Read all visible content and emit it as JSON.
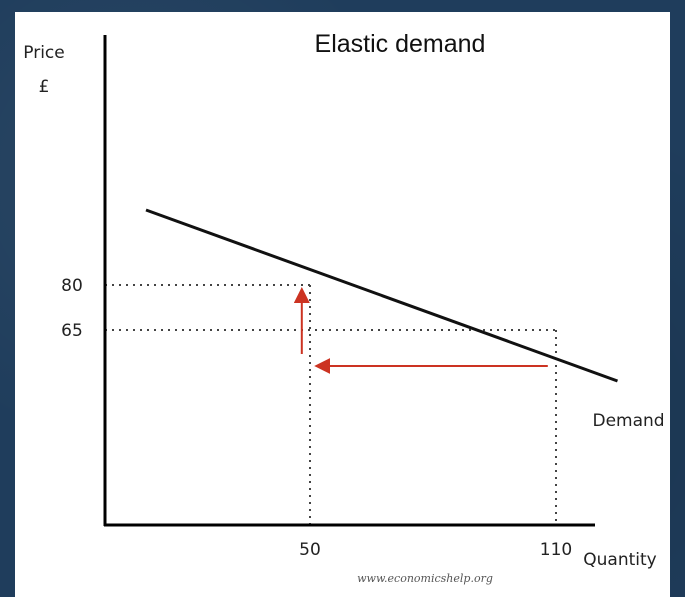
{
  "chart_data": {
    "type": "line",
    "title": "Elastic demand",
    "ylabel": [
      "Price",
      "£"
    ],
    "xlabel": "Quantity",
    "xlim": [
      0,
      130
    ],
    "ylim": [
      0,
      160
    ],
    "x_ticks": [
      50,
      110
    ],
    "y_ticks": [
      80,
      65
    ],
    "series": [
      {
        "name": "Demand",
        "points": [
          [
            10,
            105
          ],
          [
            125,
            48
          ]
        ]
      }
    ],
    "guides": [
      {
        "x": 50,
        "y": 80
      },
      {
        "x": 110,
        "y": 65
      }
    ],
    "arrows": [
      {
        "from": [
          108,
          53
        ],
        "to": [
          52,
          53
        ]
      },
      {
        "from": [
          48,
          57
        ],
        "to": [
          48,
          78
        ]
      }
    ],
    "watermark": "www.economicshelp.org",
    "colors": {
      "axis": "#000000",
      "curve": "#111111",
      "arrow": "#cc3322",
      "guide": "#444444",
      "background": "#ffffff",
      "frame": "#1f3d5c"
    }
  }
}
